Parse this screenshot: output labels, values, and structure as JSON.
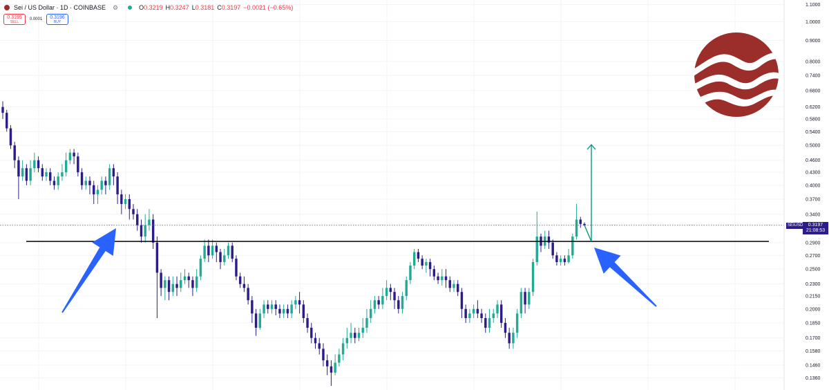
{
  "header": {
    "title": "Sei / US Dollar · 1D · COINBASE",
    "ohlc": [
      {
        "key": "O",
        "value": "0.3219"
      },
      {
        "key": "H",
        "value": "0.3247"
      },
      {
        "key": "L",
        "value": "0.3181"
      },
      {
        "key": "C",
        "value": "0.3197"
      }
    ],
    "change": "−0.0021 (−0.65%)"
  },
  "trade": {
    "sell_price": "0.3195",
    "sell_label": "SELL",
    "spread": "0.0001",
    "buy_price": "0.3196",
    "buy_label": "BUY"
  },
  "price_tag": {
    "symbol": "SEIUSD",
    "price": "0.3197",
    "countdown": "21:08:53"
  },
  "colors": {
    "up": "#22ab94",
    "down": "#2a1d8a",
    "logo": "#9b2d2a",
    "arrow": "#2962ff",
    "projection": "#089981",
    "tag": "#2a1d8a"
  },
  "chart_data": {
    "type": "candlestick",
    "y_scale": "log",
    "ylim": [
      0.128,
      1.12
    ],
    "y_ticks": [
      1.1,
      1.0,
      0.9,
      0.8,
      0.74,
      0.68,
      0.62,
      0.58,
      0.54,
      0.5,
      0.46,
      0.43,
      0.4,
      0.37,
      0.34,
      0.29,
      0.27,
      0.25,
      0.23,
      0.215,
      0.2,
      0.185,
      0.17,
      0.158,
      0.146,
      0.136
    ],
    "y_tick_labels": [
      "1.1000",
      "1.0000",
      "0.9000",
      "0.8000",
      "0.7400",
      "0.6800",
      "0.6200",
      "0.5800",
      "0.5400",
      "0.5000",
      "0.4600",
      "0.4300",
      "0.4000",
      "0.3700",
      "0.3400",
      "0.2900",
      "0.2700",
      "0.2500",
      "0.2300",
      "0.2150",
      "0.2000",
      "0.1850",
      "0.1700",
      "0.1580",
      "0.1460",
      "0.1360"
    ],
    "current_price": 0.3197,
    "support_level": 0.292,
    "projection_target": 0.502,
    "candles": [
      [
        0.62,
        0.6,
        0.64,
        0.58
      ],
      [
        0.6,
        0.55,
        0.61,
        0.54
      ],
      [
        0.55,
        0.5,
        0.56,
        0.49
      ],
      [
        0.5,
        0.46,
        0.51,
        0.44
      ],
      [
        0.46,
        0.42,
        0.47,
        0.37
      ],
      [
        0.42,
        0.44,
        0.46,
        0.41
      ],
      [
        0.44,
        0.41,
        0.45,
        0.4
      ],
      [
        0.41,
        0.44,
        0.46,
        0.4
      ],
      [
        0.44,
        0.46,
        0.48,
        0.43
      ],
      [
        0.46,
        0.44,
        0.47,
        0.43
      ],
      [
        0.44,
        0.42,
        0.45,
        0.41
      ],
      [
        0.42,
        0.43,
        0.44,
        0.41
      ],
      [
        0.43,
        0.41,
        0.44,
        0.4
      ],
      [
        0.41,
        0.4,
        0.42,
        0.39
      ],
      [
        0.4,
        0.42,
        0.43,
        0.39
      ],
      [
        0.42,
        0.43,
        0.45,
        0.41
      ],
      [
        0.43,
        0.46,
        0.48,
        0.42
      ],
      [
        0.46,
        0.48,
        0.49,
        0.45
      ],
      [
        0.48,
        0.47,
        0.49,
        0.45
      ],
      [
        0.47,
        0.43,
        0.48,
        0.42
      ],
      [
        0.43,
        0.4,
        0.44,
        0.39
      ],
      [
        0.4,
        0.41,
        0.42,
        0.39
      ],
      [
        0.41,
        0.4,
        0.42,
        0.38
      ],
      [
        0.4,
        0.38,
        0.41,
        0.36
      ],
      [
        0.38,
        0.39,
        0.4,
        0.36
      ],
      [
        0.39,
        0.41,
        0.42,
        0.38
      ],
      [
        0.41,
        0.4,
        0.42,
        0.38
      ],
      [
        0.4,
        0.44,
        0.45,
        0.39
      ],
      [
        0.44,
        0.42,
        0.45,
        0.4
      ],
      [
        0.42,
        0.38,
        0.43,
        0.36
      ],
      [
        0.38,
        0.36,
        0.39,
        0.34
      ],
      [
        0.36,
        0.37,
        0.38,
        0.35
      ],
      [
        0.37,
        0.35,
        0.38,
        0.33
      ],
      [
        0.35,
        0.34,
        0.36,
        0.33
      ],
      [
        0.34,
        0.32,
        0.35,
        0.31
      ],
      [
        0.32,
        0.3,
        0.33,
        0.29
      ],
      [
        0.3,
        0.32,
        0.34,
        0.29
      ],
      [
        0.32,
        0.33,
        0.35,
        0.31
      ],
      [
        0.33,
        0.29,
        0.34,
        0.28
      ],
      [
        0.29,
        0.245,
        0.3,
        0.19
      ],
      [
        0.245,
        0.225,
        0.25,
        0.215
      ],
      [
        0.225,
        0.235,
        0.24,
        0.21
      ],
      [
        0.235,
        0.22,
        0.24,
        0.21
      ],
      [
        0.22,
        0.23,
        0.24,
        0.215
      ],
      [
        0.23,
        0.225,
        0.24,
        0.215
      ],
      [
        0.225,
        0.235,
        0.245,
        0.22
      ],
      [
        0.235,
        0.24,
        0.25,
        0.23
      ],
      [
        0.24,
        0.235,
        0.245,
        0.225
      ],
      [
        0.235,
        0.225,
        0.24,
        0.215
      ],
      [
        0.225,
        0.24,
        0.25,
        0.22
      ],
      [
        0.24,
        0.265,
        0.27,
        0.235
      ],
      [
        0.265,
        0.285,
        0.295,
        0.26
      ],
      [
        0.285,
        0.27,
        0.295,
        0.26
      ],
      [
        0.27,
        0.285,
        0.295,
        0.265
      ],
      [
        0.285,
        0.275,
        0.29,
        0.26
      ],
      [
        0.275,
        0.26,
        0.28,
        0.25
      ],
      [
        0.26,
        0.27,
        0.28,
        0.255
      ],
      [
        0.27,
        0.285,
        0.29,
        0.265
      ],
      [
        0.285,
        0.265,
        0.29,
        0.26
      ],
      [
        0.265,
        0.24,
        0.27,
        0.235
      ],
      [
        0.24,
        0.23,
        0.245,
        0.225
      ],
      [
        0.23,
        0.225,
        0.24,
        0.22
      ],
      [
        0.225,
        0.21,
        0.23,
        0.205
      ],
      [
        0.21,
        0.195,
        0.215,
        0.185
      ],
      [
        0.195,
        0.18,
        0.2,
        0.172
      ],
      [
        0.18,
        0.195,
        0.2,
        0.178
      ],
      [
        0.195,
        0.205,
        0.21,
        0.19
      ],
      [
        0.205,
        0.2,
        0.21,
        0.195
      ],
      [
        0.2,
        0.205,
        0.21,
        0.195
      ],
      [
        0.205,
        0.2,
        0.21,
        0.193
      ],
      [
        0.2,
        0.195,
        0.205,
        0.19
      ],
      [
        0.195,
        0.2,
        0.205,
        0.19
      ],
      [
        0.2,
        0.195,
        0.205,
        0.19
      ],
      [
        0.195,
        0.205,
        0.21,
        0.19
      ],
      [
        0.205,
        0.21,
        0.215,
        0.2
      ],
      [
        0.21,
        0.205,
        0.22,
        0.195
      ],
      [
        0.205,
        0.19,
        0.21,
        0.185
      ],
      [
        0.19,
        0.18,
        0.195,
        0.175
      ],
      [
        0.18,
        0.17,
        0.185,
        0.165
      ],
      [
        0.17,
        0.165,
        0.175,
        0.16
      ],
      [
        0.165,
        0.16,
        0.17,
        0.155
      ],
      [
        0.16,
        0.15,
        0.165,
        0.145
      ],
      [
        0.15,
        0.145,
        0.155,
        0.138
      ],
      [
        0.145,
        0.14,
        0.15,
        0.13
      ],
      [
        0.14,
        0.148,
        0.155,
        0.138
      ],
      [
        0.148,
        0.155,
        0.16,
        0.145
      ],
      [
        0.155,
        0.165,
        0.17,
        0.15
      ],
      [
        0.165,
        0.17,
        0.18,
        0.16
      ],
      [
        0.17,
        0.175,
        0.185,
        0.165
      ],
      [
        0.175,
        0.17,
        0.18,
        0.165
      ],
      [
        0.17,
        0.175,
        0.18,
        0.167
      ],
      [
        0.175,
        0.18,
        0.19,
        0.17
      ],
      [
        0.18,
        0.19,
        0.2,
        0.175
      ],
      [
        0.19,
        0.2,
        0.21,
        0.185
      ],
      [
        0.2,
        0.21,
        0.215,
        0.195
      ],
      [
        0.21,
        0.205,
        0.215,
        0.2
      ],
      [
        0.205,
        0.215,
        0.225,
        0.2
      ],
      [
        0.215,
        0.225,
        0.235,
        0.21
      ],
      [
        0.225,
        0.22,
        0.23,
        0.21
      ],
      [
        0.22,
        0.21,
        0.225,
        0.2
      ],
      [
        0.21,
        0.2,
        0.215,
        0.195
      ],
      [
        0.2,
        0.215,
        0.22,
        0.195
      ],
      [
        0.215,
        0.235,
        0.24,
        0.21
      ],
      [
        0.235,
        0.255,
        0.26,
        0.23
      ],
      [
        0.255,
        0.275,
        0.28,
        0.25
      ],
      [
        0.275,
        0.265,
        0.28,
        0.26
      ],
      [
        0.265,
        0.255,
        0.27,
        0.25
      ],
      [
        0.255,
        0.26,
        0.265,
        0.245
      ],
      [
        0.26,
        0.25,
        0.265,
        0.24
      ],
      [
        0.25,
        0.24,
        0.255,
        0.235
      ],
      [
        0.24,
        0.235,
        0.245,
        0.23
      ],
      [
        0.235,
        0.24,
        0.25,
        0.228
      ],
      [
        0.24,
        0.235,
        0.25,
        0.225
      ],
      [
        0.235,
        0.225,
        0.24,
        0.22
      ],
      [
        0.225,
        0.23,
        0.235,
        0.22
      ],
      [
        0.23,
        0.22,
        0.235,
        0.215
      ],
      [
        0.22,
        0.2,
        0.225,
        0.19
      ],
      [
        0.2,
        0.19,
        0.205,
        0.185
      ],
      [
        0.19,
        0.195,
        0.2,
        0.185
      ],
      [
        0.195,
        0.2,
        0.205,
        0.19
      ],
      [
        0.2,
        0.195,
        0.21,
        0.19
      ],
      [
        0.195,
        0.19,
        0.2,
        0.185
      ],
      [
        0.19,
        0.18,
        0.195,
        0.175
      ],
      [
        0.18,
        0.19,
        0.2,
        0.175
      ],
      [
        0.19,
        0.195,
        0.2,
        0.185
      ],
      [
        0.195,
        0.205,
        0.21,
        0.19
      ],
      [
        0.205,
        0.185,
        0.21,
        0.18
      ],
      [
        0.185,
        0.175,
        0.19,
        0.17
      ],
      [
        0.175,
        0.165,
        0.18,
        0.16
      ],
      [
        0.165,
        0.175,
        0.18,
        0.16
      ],
      [
        0.175,
        0.195,
        0.2,
        0.17
      ],
      [
        0.195,
        0.22,
        0.225,
        0.19
      ],
      [
        0.22,
        0.205,
        0.225,
        0.195
      ],
      [
        0.205,
        0.22,
        0.225,
        0.2
      ],
      [
        0.22,
        0.26,
        0.265,
        0.215
      ],
      [
        0.26,
        0.3,
        0.345,
        0.255
      ],
      [
        0.3,
        0.285,
        0.305,
        0.275
      ],
      [
        0.285,
        0.3,
        0.31,
        0.28
      ],
      [
        0.3,
        0.29,
        0.31,
        0.28
      ],
      [
        0.29,
        0.27,
        0.295,
        0.265
      ],
      [
        0.27,
        0.26,
        0.275,
        0.255
      ],
      [
        0.26,
        0.265,
        0.27,
        0.255
      ],
      [
        0.265,
        0.26,
        0.27,
        0.255
      ],
      [
        0.26,
        0.27,
        0.28,
        0.258
      ],
      [
        0.27,
        0.3,
        0.305,
        0.265
      ],
      [
        0.3,
        0.33,
        0.36,
        0.295
      ],
      [
        0.33,
        0.322,
        0.335,
        0.315
      ],
      [
        0.322,
        0.3197,
        0.3247,
        0.3181
      ]
    ]
  }
}
